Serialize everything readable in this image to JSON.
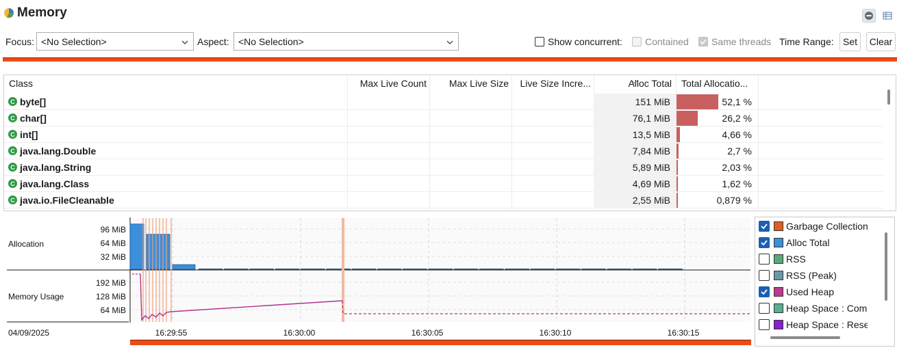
{
  "header": {
    "title": "Memory",
    "title_icon": "memory-pie-icon",
    "collapse_icon": "minus-circle-icon",
    "layout_icon": "table-layout-icon"
  },
  "toolbar": {
    "focus_label": "Focus:",
    "focus_value": "<No Selection>",
    "aspect_label": "Aspect:",
    "aspect_value": "<No Selection>",
    "show_concurrent_label": "Show concurrent:",
    "contained_label": "Contained",
    "same_threads_label": "Same threads",
    "time_range_label": "Time Range:",
    "set_label": "Set",
    "clear_label": "Clear",
    "accent": "#ee4b13"
  },
  "table": {
    "columns": [
      "Class",
      "Max Live Count",
      "Max Live Size",
      "Live Size Incre...",
      "Alloc Total",
      "Total Allocatio..."
    ],
    "sorted_column": "Alloc Total",
    "rows": [
      {
        "name": "byte[]",
        "alloc_total": "151 MiB",
        "pct": "52,1 %",
        "frac": 0.521
      },
      {
        "name": "char[]",
        "alloc_total": "76,1 MiB",
        "pct": "26,2 %",
        "frac": 0.262
      },
      {
        "name": "int[]",
        "alloc_total": "13,5 MiB",
        "pct": "4,66 %",
        "frac": 0.0466
      },
      {
        "name": "java.lang.Double",
        "alloc_total": "7,84 MiB",
        "pct": "2,7 %",
        "frac": 0.027
      },
      {
        "name": "java.lang.String",
        "alloc_total": "5,89 MiB",
        "pct": "2,03 %",
        "frac": 0.0203
      },
      {
        "name": "java.lang.Class",
        "alloc_total": "4,69 MiB",
        "pct": "1,62 %",
        "frac": 0.0162
      },
      {
        "name": "java.io.FileCleanable",
        "alloc_total": "2,55 MiB",
        "pct": "0,879 %",
        "frac": 0.00879
      }
    ],
    "bar_color": "#c86060"
  },
  "chart": {
    "lanes": {
      "allocation": "Allocation",
      "memory_usage": "Memory Usage"
    },
    "alloc_ticks": [
      "96 MiB",
      "64 MiB",
      "32 MiB"
    ],
    "mem_ticks": [
      "192 MiB",
      "128 MiB",
      "64 MiB"
    ],
    "date": "04/09/2025",
    "time_ticks": [
      "16:29:55",
      "16:30:00",
      "16:30:05",
      "16:30:10",
      "16:30:15"
    ],
    "colors": {
      "alloc": "#3b8fdb",
      "heap": "#b03090",
      "gc_marker": "#f0a080"
    }
  },
  "chart_data": {
    "type": "bar",
    "title": "",
    "series": [
      {
        "name": "Alloc Total",
        "x": [
          "16:29:54",
          "16:29:55",
          "16:29:56",
          "16:29:57",
          "16:29:58",
          "16:29:59",
          "16:30:00",
          "16:30:01",
          "16:30:02",
          "16:30:03",
          "16:30:04",
          "16:30:05",
          "16:30:06",
          "16:30:07",
          "16:30:08",
          "16:30:09",
          "16:30:10",
          "16:30:11",
          "16:30:12",
          "16:30:13",
          "16:30:14",
          "16:30:15"
        ],
        "values": [
          106,
          82,
          11,
          1,
          1,
          1,
          1,
          1,
          1,
          1,
          1,
          1,
          1,
          1,
          1,
          1,
          1,
          1,
          1,
          1,
          1,
          1
        ]
      },
      {
        "name": "Used Heap",
        "x": [
          "16:29:54",
          "16:29:55",
          "16:30:01.7",
          "16:30:01.8",
          "16:30:18"
        ],
        "values": [
          20,
          45,
          100,
          40,
          40
        ]
      }
    ],
    "ylabel": "",
    "ylim": [
      0,
      110
    ]
  },
  "legend": {
    "items": [
      {
        "label": "Garbage Collection",
        "checked": true,
        "color": "#e06020"
      },
      {
        "label": "Alloc Total",
        "checked": true,
        "color": "#3b8fdb"
      },
      {
        "label": "RSS",
        "checked": false,
        "color": "#5aa878"
      },
      {
        "label": "RSS (Peak)",
        "checked": false,
        "color": "#6a98a8"
      },
      {
        "label": "Used Heap",
        "checked": true,
        "color": "#c03890"
      },
      {
        "label": "Heap Space : Committed",
        "checked": false,
        "color": "#58b090"
      },
      {
        "label": "Heap Space : Reserved",
        "checked": false,
        "color": "#8a20d0"
      }
    ]
  }
}
